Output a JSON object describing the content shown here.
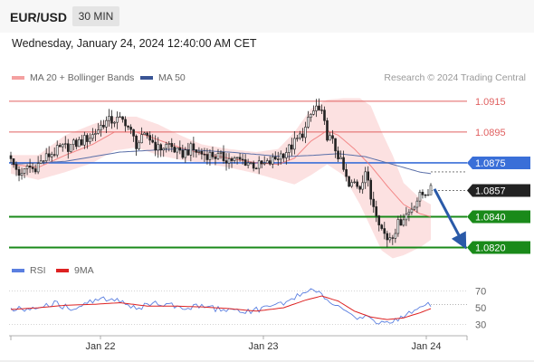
{
  "header": {
    "symbol": "EUR/USD",
    "timeframe": "30 MIN"
  },
  "datetime": "Wednesday, January 24, 2024 12:40:00 AM CET",
  "legend": {
    "ma20_label": "MA 20 + Bollinger Bands",
    "ma50_label": "MA 50",
    "credit": "Research © 2024 Trading Central",
    "rsi_label": "RSI",
    "ma9_label": "9MA"
  },
  "colors": {
    "bollinger_fill": "#fbdada",
    "ma20": "#f07070",
    "ma50": "#5a6fa8",
    "resistance": "#e06060",
    "pivot": "#3a6fd8",
    "support": "#1a8a1a",
    "projection_arrow": "#2a5aa8",
    "rsi": "#5b7fe0",
    "rsi_ma": "#dd2222",
    "price_tag": "#222222"
  },
  "chart_data": [
    {
      "type": "line",
      "subtype": "candlestick",
      "title": "",
      "y_range": [
        1.0815,
        1.0922
      ],
      "x_ticks": [
        "Jan 22",
        "Jan 23",
        "Jan 24"
      ],
      "levels": [
        {
          "value": "1.0915",
          "kind": "resistance"
        },
        {
          "value": "1.0895",
          "kind": "resistance"
        },
        {
          "value": "1.0875",
          "kind": "pivot"
        },
        {
          "value": "1.0857",
          "kind": "last_price"
        },
        {
          "value": "1.0840",
          "kind": "support"
        },
        {
          "value": "1.0820",
          "kind": "support"
        }
      ],
      "projection": {
        "from": 1.0858,
        "to": 1.082,
        "direction": "down"
      },
      "close_anchors": [
        [
          0,
          1.0876
        ],
        [
          2,
          1.0871
        ],
        [
          4,
          1.0866
        ],
        [
          6,
          1.0873
        ],
        [
          8,
          1.0871
        ],
        [
          10,
          1.0874
        ],
        [
          14,
          1.088
        ],
        [
          18,
          1.0884
        ],
        [
          22,
          1.0886
        ],
        [
          26,
          1.0889
        ],
        [
          30,
          1.0893
        ],
        [
          34,
          1.0901
        ],
        [
          38,
          1.0903
        ],
        [
          42,
          1.0902
        ],
        [
          46,
          1.0887
        ],
        [
          50,
          1.0893
        ],
        [
          54,
          1.0884
        ],
        [
          58,
          1.0887
        ],
        [
          62,
          1.088
        ],
        [
          66,
          1.0884
        ],
        [
          70,
          1.0881
        ],
        [
          74,
          1.088
        ],
        [
          78,
          1.0878
        ],
        [
          82,
          1.0877
        ],
        [
          86,
          1.0876
        ],
        [
          90,
          1.0873
        ],
        [
          94,
          1.0874
        ],
        [
          98,
          1.0879
        ],
        [
          102,
          1.0884
        ],
        [
          106,
          1.0892
        ],
        [
          108,
          1.0897
        ],
        [
          110,
          1.0906
        ],
        [
          112,
          1.0911
        ],
        [
          114,
          1.0906
        ],
        [
          116,
          1.0893
        ],
        [
          118,
          1.0888
        ],
        [
          120,
          1.088
        ],
        [
          122,
          1.087
        ],
        [
          124,
          1.0859
        ],
        [
          126,
          1.0862
        ],
        [
          128,
          1.086
        ],
        [
          130,
          1.087
        ],
        [
          132,
          1.0852
        ],
        [
          134,
          1.0844
        ],
        [
          136,
          1.0832
        ],
        [
          138,
          1.0826
        ],
        [
          140,
          1.0829
        ],
        [
          142,
          1.0835
        ],
        [
          144,
          1.084
        ],
        [
          146,
          1.0843
        ],
        [
          148,
          1.0849
        ],
        [
          150,
          1.0853
        ],
        [
          152,
          1.0856
        ],
        [
          154,
          1.0857
        ]
      ],
      "ma20_anchors": [
        [
          0,
          1.0874
        ],
        [
          10,
          1.0872
        ],
        [
          20,
          1.088
        ],
        [
          30,
          1.0887
        ],
        [
          38,
          1.0895
        ],
        [
          46,
          1.0895
        ],
        [
          54,
          1.089
        ],
        [
          62,
          1.0885
        ],
        [
          70,
          1.0881
        ],
        [
          80,
          1.0878
        ],
        [
          90,
          1.0875
        ],
        [
          98,
          1.0874
        ],
        [
          104,
          1.0878
        ],
        [
          110,
          1.0889
        ],
        [
          116,
          1.0896
        ],
        [
          120,
          1.0893
        ],
        [
          126,
          1.0884
        ],
        [
          132,
          1.0873
        ],
        [
          138,
          1.086
        ],
        [
          144,
          1.0848
        ],
        [
          150,
          1.0842
        ],
        [
          154,
          1.084
        ]
      ],
      "bb_upper_anchors": [
        [
          0,
          1.088
        ],
        [
          10,
          1.088
        ],
        [
          20,
          1.0893
        ],
        [
          30,
          1.09
        ],
        [
          38,
          1.0905
        ],
        [
          46,
          1.0905
        ],
        [
          54,
          1.09
        ],
        [
          62,
          1.0893
        ],
        [
          70,
          1.0887
        ],
        [
          80,
          1.0884
        ],
        [
          90,
          1.0882
        ],
        [
          98,
          1.0884
        ],
        [
          104,
          1.0895
        ],
        [
          110,
          1.091
        ],
        [
          116,
          1.0916
        ],
        [
          122,
          1.0917
        ],
        [
          128,
          1.0917
        ],
        [
          132,
          1.0912
        ],
        [
          136,
          1.0895
        ],
        [
          140,
          1.088
        ],
        [
          144,
          1.0862
        ],
        [
          150,
          1.0852
        ],
        [
          154,
          1.0848
        ]
      ],
      "bb_lower_anchors": [
        [
          0,
          1.0868
        ],
        [
          10,
          1.0864
        ],
        [
          20,
          1.0869
        ],
        [
          30,
          1.0875
        ],
        [
          38,
          1.0883
        ],
        [
          46,
          1.0885
        ],
        [
          54,
          1.088
        ],
        [
          62,
          1.0877
        ],
        [
          70,
          1.0875
        ],
        [
          80,
          1.0872
        ],
        [
          90,
          1.0868
        ],
        [
          98,
          1.0864
        ],
        [
          104,
          1.0861
        ],
        [
          110,
          1.0867
        ],
        [
          116,
          1.0874
        ],
        [
          122,
          1.0867
        ],
        [
          128,
          1.0848
        ],
        [
          132,
          1.0833
        ],
        [
          136,
          1.0818
        ],
        [
          140,
          1.0813
        ],
        [
          144,
          1.0815
        ],
        [
          150,
          1.082
        ],
        [
          154,
          1.0825
        ]
      ],
      "ma50_anchors": [
        [
          0,
          1.0874
        ],
        [
          20,
          1.0876
        ],
        [
          40,
          1.0882
        ],
        [
          60,
          1.0884
        ],
        [
          80,
          1.0882
        ],
        [
          100,
          1.0879
        ],
        [
          112,
          1.088
        ],
        [
          120,
          1.0881
        ],
        [
          130,
          1.0879
        ],
        [
          140,
          1.0874
        ],
        [
          150,
          1.0869
        ],
        [
          154,
          1.0868
        ]
      ]
    },
    {
      "type": "line",
      "title": "",
      "series": [
        {
          "name": "RSI"
        },
        {
          "name": "9MA"
        }
      ],
      "y_range": [
        20,
        78
      ],
      "y_ticks": [
        "70",
        "50",
        "30"
      ],
      "rsi_anchors": [
        [
          0,
          50
        ],
        [
          6,
          47
        ],
        [
          10,
          53
        ],
        [
          16,
          55
        ],
        [
          22,
          49
        ],
        [
          28,
          56
        ],
        [
          34,
          60
        ],
        [
          40,
          59
        ],
        [
          46,
          49
        ],
        [
          52,
          55
        ],
        [
          58,
          53
        ],
        [
          64,
          50
        ],
        [
          70,
          52
        ],
        [
          76,
          48
        ],
        [
          82,
          47
        ],
        [
          88,
          46
        ],
        [
          94,
          50
        ],
        [
          100,
          56
        ],
        [
          106,
          65
        ],
        [
          110,
          71
        ],
        [
          114,
          66
        ],
        [
          118,
          56
        ],
        [
          122,
          46
        ],
        [
          126,
          37
        ],
        [
          130,
          42
        ],
        [
          134,
          33
        ],
        [
          138,
          31
        ],
        [
          142,
          36
        ],
        [
          146,
          44
        ],
        [
          150,
          51
        ],
        [
          154,
          54
        ]
      ],
      "rsi_ma_anchors": [
        [
          0,
          48
        ],
        [
          10,
          50
        ],
        [
          20,
          53
        ],
        [
          30,
          54
        ],
        [
          40,
          56
        ],
        [
          50,
          52
        ],
        [
          60,
          52
        ],
        [
          70,
          51
        ],
        [
          80,
          49
        ],
        [
          90,
          46
        ],
        [
          100,
          50
        ],
        [
          108,
          59
        ],
        [
          114,
          64
        ],
        [
          120,
          58
        ],
        [
          126,
          46
        ],
        [
          132,
          39
        ],
        [
          138,
          36
        ],
        [
          144,
          38
        ],
        [
          150,
          44
        ],
        [
          154,
          49
        ]
      ]
    }
  ]
}
